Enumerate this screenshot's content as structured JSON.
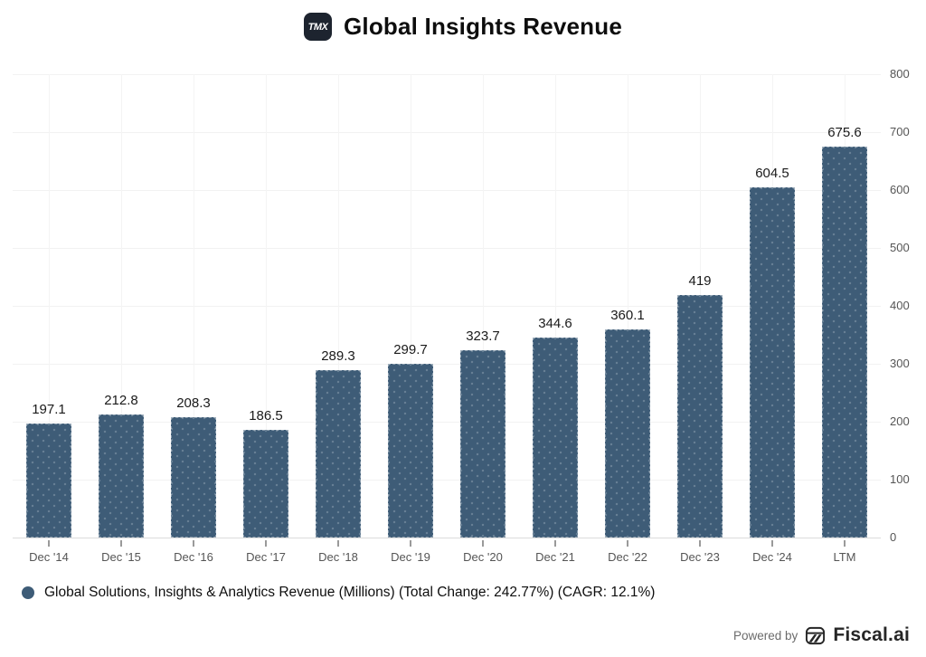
{
  "title": "Global Insights Revenue",
  "logo": {
    "text": "TMX"
  },
  "chart_data": {
    "type": "bar",
    "categories": [
      "Dec '14",
      "Dec '15",
      "Dec '16",
      "Dec '17",
      "Dec '18",
      "Dec '19",
      "Dec '20",
      "Dec '21",
      "Dec '22",
      "Dec '23",
      "Dec '24",
      "LTM"
    ],
    "values": [
      197.1,
      212.8,
      208.3,
      186.5,
      289.3,
      299.7,
      323.7,
      344.6,
      360.1,
      419,
      604.5,
      675.6
    ],
    "title": "Global Insights Revenue",
    "xlabel": "",
    "ylabel": "",
    "ylim": [
      0,
      800
    ],
    "yticks": [
      0,
      100,
      200,
      300,
      400,
      500,
      600,
      700,
      800
    ],
    "yaxis_position": "right",
    "grid": true,
    "bar_color": "#3e5c77",
    "grid_color": "#f2f2f2",
    "series_name": "Global Solutions, Insights & Analytics Revenue (Millions)"
  },
  "legend": {
    "marker_color": "#3e5c77",
    "label": "Global Solutions, Insights & Analytics Revenue (Millions) (Total Change: 242.77%) (CAGR: 12.1%)"
  },
  "footer": {
    "powered_by": "Powered by",
    "brand": "Fiscal.ai"
  }
}
